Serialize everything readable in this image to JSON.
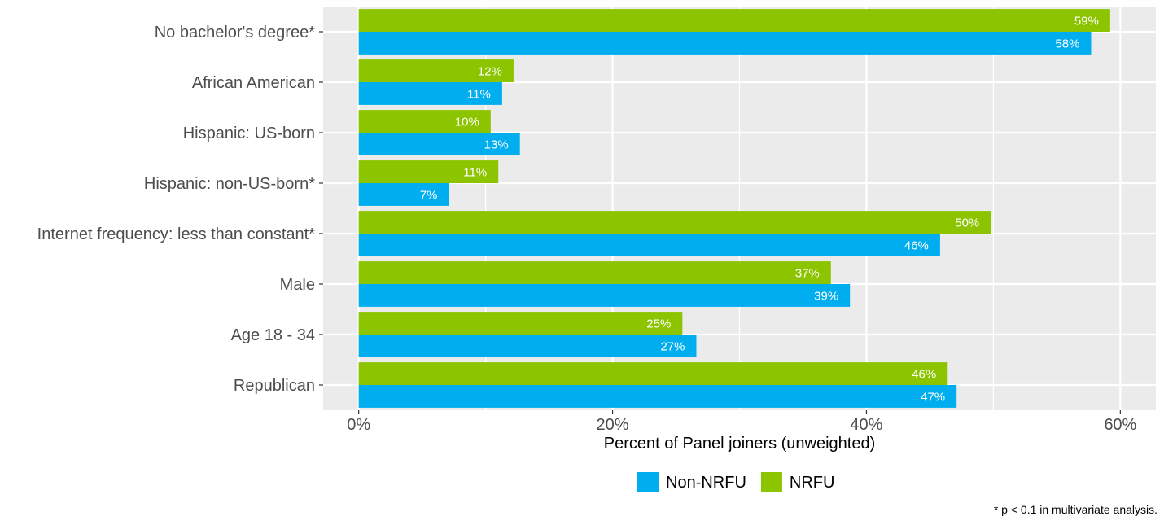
{
  "chart_data": {
    "type": "bar",
    "orientation": "horizontal",
    "categories": [
      "No bachelor's degree*",
      "African American",
      "Hispanic: US-born",
      "Hispanic: non-US-born*",
      "Internet frequency: less than constant*",
      "Male",
      "Age 18 - 34",
      "Republican"
    ],
    "series": [
      {
        "name": "NRFU",
        "color": "#8CC400",
        "values": [
          59.2,
          12.2,
          10.4,
          11.0,
          49.8,
          37.2,
          25.5,
          46.4
        ],
        "labels": [
          "59%",
          "12%",
          "10%",
          "11%",
          "50%",
          "37%",
          "25%",
          "46%"
        ]
      },
      {
        "name": "Non-NRFU",
        "color": "#00AEEF",
        "values": [
          57.7,
          11.3,
          12.7,
          7.1,
          45.8,
          38.7,
          26.6,
          47.1
        ],
        "labels": [
          "58%",
          "11%",
          "13%",
          "7%",
          "46%",
          "39%",
          "27%",
          "47%"
        ]
      }
    ],
    "legend_order": [
      "Non-NRFU",
      "NRFU"
    ],
    "legend_position": "bottom",
    "xlabel": "Percent of Panel joiners (unweighted)",
    "xlim": [
      -2.8,
      62.8
    ],
    "x_ticks": [
      0,
      20,
      40,
      60
    ],
    "x_tick_labels": [
      "0%",
      "20%",
      "40%",
      "60%"
    ],
    "grid": true,
    "panel_background": "#EBEBEB",
    "note": "* p < 0.1 in multivariate analysis."
  }
}
